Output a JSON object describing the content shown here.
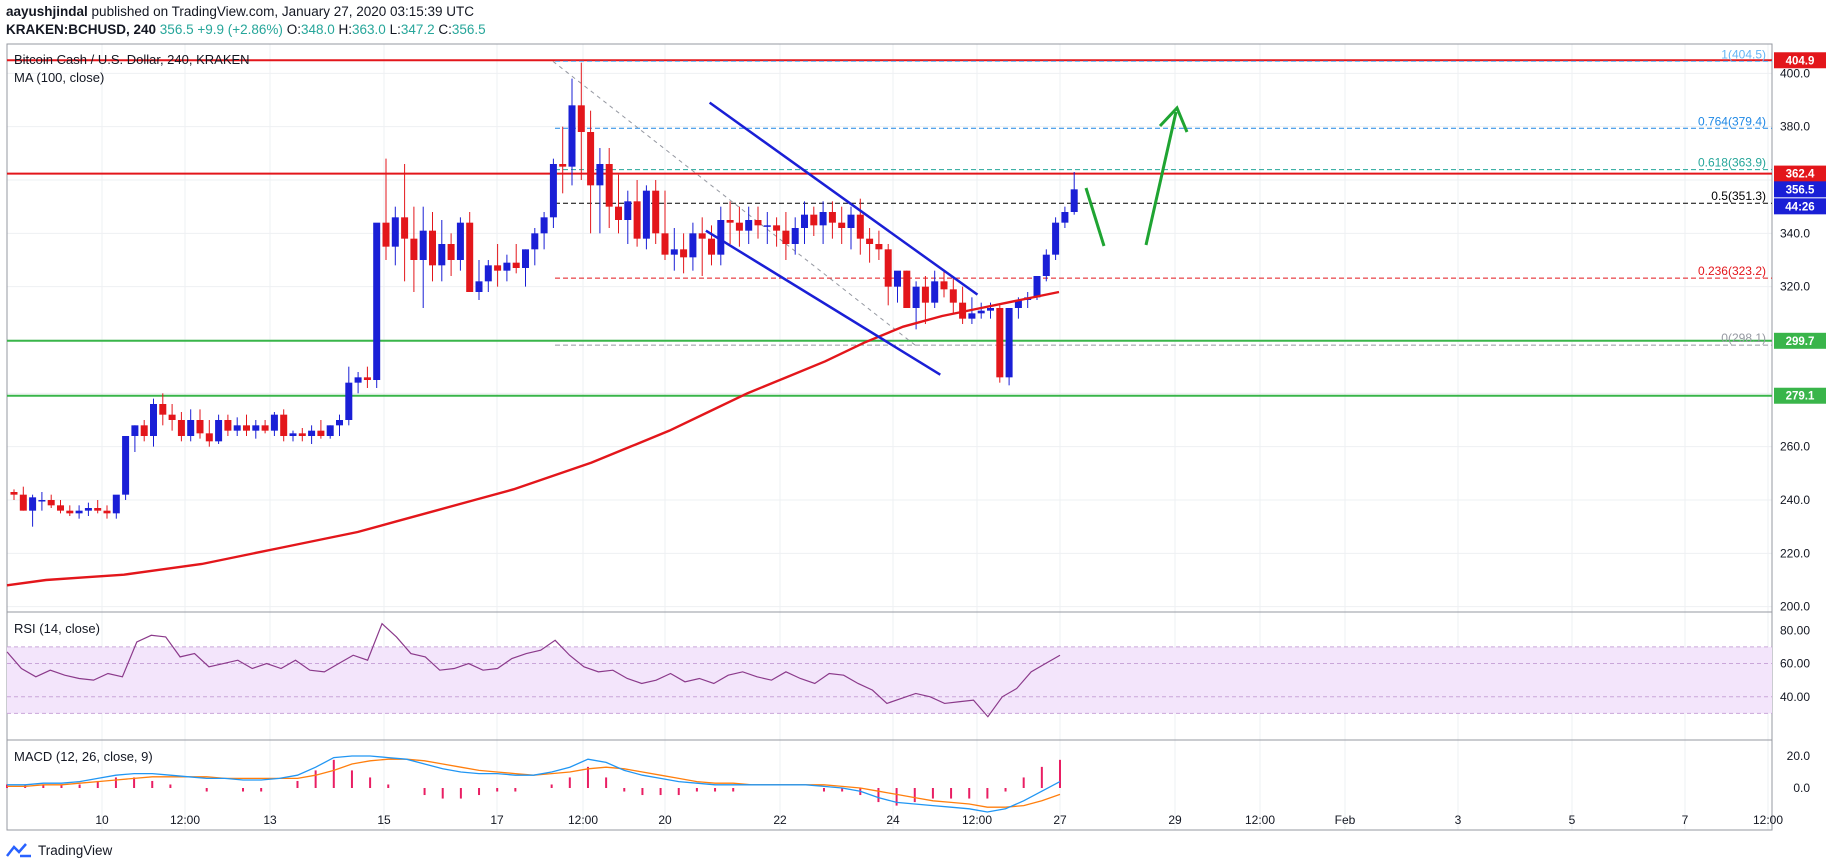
{
  "header": {
    "author": "aayushjindal",
    "published_text": "published on TradingView.com, January 27, 2020 03:15:39 UTC",
    "symbol": "KRAKEN:BCHUSD, 240",
    "last": "356.5",
    "change": "+9.9 (+2.86%)",
    "o_label": "O:",
    "o_value": "348.0",
    "h_label": "H:",
    "h_value": "363.0",
    "l_label": "L:",
    "l_value": "347.2",
    "c_label": "C:",
    "c_value": "356.5"
  },
  "legend": {
    "title": "Bitcoin Cash / U.S. Dollar, 240, KRAKEN",
    "ma": "MA (100, close)",
    "rsi": "RSI (14, close)",
    "macd": "MACD (12, 26, close, 9)"
  },
  "footer": {
    "brand": "TradingView"
  },
  "colors": {
    "up": "#1a1fd6",
    "down": "#e3161b",
    "ma": "#e3161b",
    "resistance": "#e3161b",
    "support": "#39b54a",
    "channel": "#1a1fd6",
    "arrow": "#1fa432",
    "rsi_line": "#8b3a8b",
    "rsi_band": "#f3e5fb",
    "macd_line": "#2196f3",
    "signal_line": "#ff7f0e",
    "hist": "#e91e63"
  },
  "chart_data": {
    "type": "candlestick",
    "title": "Bitcoin Cash / U.S. Dollar, 240, KRAKEN",
    "price_axis": {
      "ticks": [
        "200.0",
        "220.0",
        "240.0",
        "260.0",
        "280.0",
        "300.0",
        "320.0",
        "340.0",
        "360.0",
        "380.0",
        "400.0"
      ],
      "ylim": [
        198,
        411
      ]
    },
    "time_axis": {
      "ticks": [
        "10",
        "12:00",
        "13",
        "15",
        "17",
        "12:00",
        "20",
        "22",
        "24",
        "12:00",
        "27",
        "29",
        "12:00",
        "Feb",
        "3",
        "5",
        "7",
        "12:00"
      ]
    },
    "candles_ohlc": [
      [
        243,
        244,
        240,
        242
      ],
      [
        242,
        245,
        236,
        236
      ],
      [
        236,
        242,
        230,
        241
      ],
      [
        240,
        243,
        236,
        240
      ],
      [
        240,
        242,
        237,
        238
      ],
      [
        238,
        240,
        235,
        236
      ],
      [
        236,
        238,
        234,
        235
      ],
      [
        235,
        238,
        233,
        236
      ],
      [
        236,
        239,
        234,
        237
      ],
      [
        237,
        240,
        235,
        236
      ],
      [
        236,
        238,
        233,
        235
      ],
      [
        235,
        240,
        233,
        242
      ],
      [
        242,
        258,
        240,
        264
      ],
      [
        264,
        268,
        258,
        268
      ],
      [
        268,
        270,
        262,
        264
      ],
      [
        264,
        278,
        260,
        276
      ],
      [
        276,
        280,
        268,
        272
      ],
      [
        272,
        276,
        266,
        270
      ],
      [
        270,
        273,
        262,
        264
      ],
      [
        264,
        274,
        262,
        270
      ],
      [
        270,
        274,
        263,
        265
      ],
      [
        265,
        270,
        260,
        262
      ],
      [
        262,
        272,
        261,
        270
      ],
      [
        270,
        272,
        264,
        266
      ],
      [
        266,
        271,
        264,
        268
      ],
      [
        268,
        272,
        264,
        266
      ],
      [
        266,
        270,
        263,
        268
      ],
      [
        268,
        270,
        265,
        266
      ],
      [
        266,
        273,
        264,
        272
      ],
      [
        272,
        274,
        262,
        264
      ],
      [
        264,
        266,
        262,
        265
      ],
      [
        265,
        267,
        262,
        264
      ],
      [
        264,
        268,
        261,
        266
      ],
      [
        266,
        270,
        263,
        264
      ],
      [
        264,
        268,
        263,
        268
      ],
      [
        268,
        272,
        264,
        270
      ],
      [
        270,
        290,
        268,
        284
      ],
      [
        284,
        288,
        280,
        286
      ],
      [
        286,
        290,
        282,
        285
      ],
      [
        285,
        330,
        282,
        344
      ],
      [
        344,
        368,
        330,
        335
      ],
      [
        335,
        350,
        328,
        346
      ],
      [
        346,
        366,
        322,
        338
      ],
      [
        338,
        350,
        318,
        330
      ],
      [
        330,
        350,
        312,
        341
      ],
      [
        341,
        348,
        322,
        328
      ],
      [
        328,
        345,
        322,
        336
      ],
      [
        336,
        340,
        324,
        330
      ],
      [
        330,
        346,
        326,
        344
      ],
      [
        344,
        348,
        320,
        318
      ],
      [
        318,
        330,
        315,
        322
      ],
      [
        322,
        330,
        318,
        328
      ],
      [
        328,
        336,
        320,
        326
      ],
      [
        326,
        332,
        322,
        329
      ],
      [
        329,
        336,
        325,
        327
      ],
      [
        327,
        334,
        320,
        334
      ],
      [
        334,
        342,
        328,
        340
      ],
      [
        340,
        348,
        334,
        346
      ],
      [
        346,
        368,
        342,
        366
      ],
      [
        366,
        380,
        355,
        365
      ],
      [
        365,
        398,
        358,
        388
      ],
      [
        388,
        404,
        360,
        378
      ],
      [
        378,
        386,
        340,
        358
      ],
      [
        358,
        372,
        340,
        366
      ],
      [
        366,
        372,
        342,
        350
      ],
      [
        350,
        362,
        340,
        345
      ],
      [
        345,
        356,
        336,
        352
      ],
      [
        352,
        360,
        335,
        338
      ],
      [
        338,
        358,
        334,
        356
      ],
      [
        356,
        360,
        336,
        340
      ],
      [
        340,
        356,
        330,
        332
      ],
      [
        332,
        342,
        326,
        334
      ],
      [
        334,
        340,
        325,
        331
      ],
      [
        331,
        344,
        326,
        340
      ],
      [
        340,
        346,
        324,
        338
      ],
      [
        338,
        343,
        328,
        332
      ],
      [
        332,
        350,
        328,
        345
      ],
      [
        345,
        352,
        336,
        344
      ],
      [
        344,
        350,
        335,
        341
      ],
      [
        341,
        350,
        336,
        345
      ],
      [
        345,
        350,
        338,
        343
      ],
      [
        343,
        348,
        336,
        343
      ],
      [
        343,
        346,
        335,
        341
      ],
      [
        341,
        348,
        330,
        336
      ],
      [
        336,
        346,
        332,
        342
      ],
      [
        342,
        352,
        336,
        347
      ],
      [
        347,
        350,
        339,
        343
      ],
      [
        343,
        352,
        336,
        348
      ],
      [
        348,
        352,
        338,
        344
      ],
      [
        344,
        350,
        336,
        342
      ],
      [
        342,
        350,
        334,
        347
      ],
      [
        347,
        353,
        332,
        338
      ],
      [
        338,
        342,
        329,
        336
      ],
      [
        336,
        341,
        330,
        334
      ],
      [
        334,
        336,
        313,
        320
      ],
      [
        320,
        325,
        314,
        326
      ],
      [
        326,
        326,
        312,
        312
      ],
      [
        312,
        322,
        304,
        320
      ],
      [
        320,
        324,
        306,
        314
      ],
      [
        314,
        326,
        312,
        322
      ],
      [
        322,
        326,
        316,
        319
      ],
      [
        319,
        324,
        310,
        314
      ],
      [
        314,
        320,
        306,
        308
      ],
      [
        308,
        316,
        306,
        310
      ],
      [
        310,
        314,
        308,
        311
      ],
      [
        311,
        314,
        308,
        312
      ],
      [
        312,
        313,
        284,
        286
      ],
      [
        286,
        300,
        283,
        312
      ],
      [
        312,
        316,
        308,
        315
      ],
      [
        315,
        318,
        312,
        316
      ],
      [
        316,
        324,
        315,
        324
      ],
      [
        324,
        334,
        322,
        332
      ],
      [
        332,
        346,
        330,
        344
      ],
      [
        344,
        350,
        342,
        348
      ],
      [
        348,
        363,
        347,
        356.5
      ]
    ],
    "ma100": [
      [
        0,
        208
      ],
      [
        1,
        210
      ],
      [
        2,
        211
      ],
      [
        3,
        212
      ],
      [
        4,
        214
      ],
      [
        5,
        216
      ],
      [
        6,
        219
      ],
      [
        7,
        222
      ],
      [
        8,
        225
      ],
      [
        9,
        228
      ],
      [
        10,
        232
      ],
      [
        11,
        236
      ],
      [
        12,
        240
      ],
      [
        13,
        244
      ],
      [
        14,
        249
      ],
      [
        15,
        254
      ],
      [
        16,
        260
      ],
      [
        17,
        266
      ],
      [
        18,
        273
      ],
      [
        19,
        280
      ],
      [
        20,
        286
      ],
      [
        21,
        292
      ],
      [
        22,
        299
      ],
      [
        23,
        305
      ],
      [
        24,
        309
      ],
      [
        25,
        312
      ],
      [
        26,
        315
      ],
      [
        27,
        318
      ]
    ],
    "fibonacci": [
      {
        "label": "1(404.5)",
        "level": 404.5
      },
      {
        "label": "0.764(379.4)",
        "level": 379.4
      },
      {
        "label": "0.618(363.9)",
        "level": 363.9
      },
      {
        "label": "0.5(351.3)",
        "level": 351.3
      },
      {
        "label": "0.236(323.2)",
        "level": 323.2
      },
      {
        "label": "0(298.1)",
        "level": 298.1
      }
    ],
    "levels": {
      "resistance_1": "404.9",
      "resistance_2": "362.4",
      "current": "356.5",
      "countdown": "44:26",
      "support_1": "299.7",
      "support_2": "279.1"
    },
    "channel": {
      "upper": [
        [
          18.7,
          389
        ],
        [
          25.9,
          317
        ]
      ],
      "lower": [
        [
          18.6,
          341
        ],
        [
          24.9,
          287
        ]
      ]
    },
    "rsi": {
      "ticks": [
        "40.00",
        "60.00",
        "80.00"
      ],
      "values": [
        67,
        57,
        52,
        56,
        53,
        51,
        50,
        54,
        52,
        73,
        77,
        76,
        64,
        66,
        58,
        60,
        62,
        57,
        60,
        57,
        62,
        56,
        55,
        60,
        65,
        62,
        84,
        76,
        66,
        64,
        56,
        57,
        60,
        56,
        57,
        63,
        66,
        68,
        74,
        65,
        58,
        55,
        56,
        51,
        48,
        50,
        54,
        49,
        51,
        48,
        53,
        55,
        52,
        50,
        55,
        51,
        48,
        54,
        53,
        48,
        44,
        36,
        39,
        42,
        40,
        36,
        37,
        38,
        28,
        40,
        45,
        55,
        60,
        65
      ],
      "band": [
        30,
        70
      ]
    },
    "macd": {
      "ticks": [
        "0.0",
        "20.0"
      ],
      "macd_line": [
        2,
        2,
        3,
        3,
        4,
        6,
        8,
        9,
        9,
        8,
        7,
        6,
        6,
        5,
        5,
        6,
        8,
        13,
        19,
        20,
        20,
        19,
        18,
        15,
        12,
        10,
        9,
        9,
        8,
        8,
        10,
        13,
        18,
        16,
        11,
        8,
        6,
        4,
        3,
        2,
        2,
        2,
        2,
        2,
        2,
        1,
        0,
        -2,
        -6,
        -9,
        -10,
        -11,
        -12,
        -13,
        -15,
        -13,
        -8,
        -2,
        4
      ],
      "signal_line": [
        1,
        1,
        2,
        2,
        3,
        4,
        5,
        6,
        7,
        7,
        7,
        7,
        6,
        6,
        6,
        6,
        6,
        8,
        11,
        15,
        17,
        18,
        18,
        17,
        15,
        13,
        11,
        10,
        9,
        8,
        9,
        10,
        12,
        13,
        12,
        10,
        8,
        6,
        4,
        3,
        3,
        2,
        2,
        2,
        2,
        2,
        1,
        0,
        -2,
        -4,
        -6,
        -8,
        -9,
        -10,
        -12,
        -12,
        -11,
        -8,
        -4
      ]
    }
  }
}
